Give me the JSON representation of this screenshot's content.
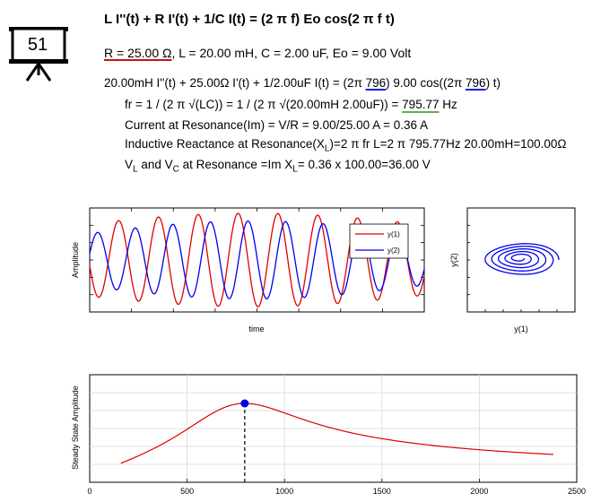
{
  "slide_number": "51",
  "header": {
    "title": "L I''(t) + R I'(t) + 1/C I(t) = (2 π f) Eo cos(2 π f t)",
    "params_r": "R = 25.00 Ω",
    "params_rest": ", L = 20.00 mH, C = 2.00 uF, Eo = 9.00 Volt"
  },
  "equations": {
    "eq1_a": "20.00mH I''(t) + 25.00Ω I'(t) + 1/2.00uF I(t) = (2π ",
    "eq1_f1": "796",
    "eq1_b": ") 9.00 cos((2π ",
    "eq1_f2": "796",
    "eq1_c": ") t)",
    "eq2_a": "fr = 1 / (2 π √(LC)) = 1 / (2 π √(20.00mH 2.00uF)) = ",
    "eq2_val": "795.77",
    "eq2_b": " Hz",
    "eq3": "Current at Resonance(Im) = V/R = 9.00/25.00 A = 0.36 A",
    "eq4_a": "Inductive Reactance at Resonance(X",
    "eq4_sub": "L",
    "eq4_b": ")=2 π fr L=2 π 795.77Hz 20.00mH=100.00Ω",
    "eq5_a": "V",
    "eq5_sub1": "L",
    "eq5_b": " and V",
    "eq5_sub2": "C",
    "eq5_c": " at Resonance =Im X",
    "eq5_sub3": "L",
    "eq5_d": "= 0.36 x 100.00=36.00 V"
  },
  "colors": {
    "series1": "#e00000",
    "series2": "#0000ee",
    "resonance_curve": "#e00000",
    "resonance_point": "#0000ee"
  },
  "chart_data": [
    {
      "type": "line",
      "xlabel": "time",
      "ylabel": "Amplitude",
      "x_tick_labels": false,
      "y_tick_labels": false,
      "legend_position": "top-right",
      "series": [
        {
          "name": "y(1)",
          "amplitude_envelope": [
            0.65,
            0.9
          ],
          "cycles": 8.4
        },
        {
          "name": "y(2)",
          "amplitude_envelope": [
            0.45,
            0.75
          ],
          "cycles": 8.9
        }
      ]
    },
    {
      "type": "line",
      "xlabel": "y(1)",
      "ylabel": "y(2)",
      "x_tick_labels": false,
      "y_tick_labels": false,
      "curve": "phase-portrait spiral",
      "turns": 4,
      "outer_radius": [
        0.8,
        0.75
      ]
    },
    {
      "type": "line",
      "xlabel": "",
      "ylabel": "Steady State Amplitude",
      "xlim": [
        0,
        2500
      ],
      "x_ticks": [
        0,
        500,
        1000,
        1500,
        2000,
        2500
      ],
      "y_tick_labels": false,
      "grid": true,
      "resonance_frequency": 795.77,
      "curve_x_range": [
        160,
        2380
      ],
      "marker": {
        "x": 795.77,
        "y": 1.0
      }
    }
  ]
}
